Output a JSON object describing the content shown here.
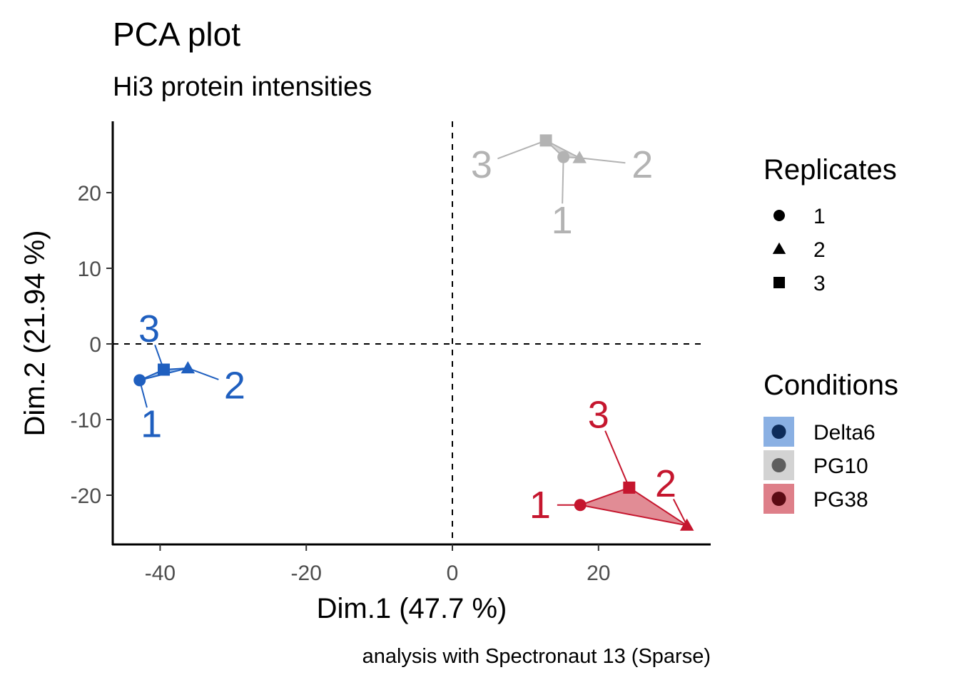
{
  "chart_data": {
    "type": "scatter",
    "title": "PCA plot",
    "subtitle": "Hi3 protein intensities",
    "xlabel": "Dim.1 (47.7 %)",
    "ylabel": "Dim.2 (21.94 %)",
    "caption": "analysis with Spectronaut 13 (Sparse)",
    "xlim": [
      -46.5,
      35.5
    ],
    "ylim": [
      -26.5,
      29.5
    ],
    "x_ticks": [
      -40,
      -20,
      0,
      20
    ],
    "x_tick_labels": [
      "-40",
      "-20",
      "0",
      "20"
    ],
    "y_ticks": [
      -20,
      -10,
      0,
      10,
      20
    ],
    "y_tick_labels": [
      "-20",
      "-10",
      "0",
      "10",
      "20"
    ],
    "reference_lines": {
      "x": 0,
      "y": 0
    },
    "grid": false,
    "series": [
      {
        "name": "Delta6",
        "color": "#1f5fbf",
        "fill": "#8ab0e3",
        "legend_dot": "#0d2c5a",
        "points": [
          {
            "replicate": "1",
            "shape": "circle",
            "x": -42.8,
            "y": -4.8,
            "label": "1",
            "label_x": -41.2,
            "label_y": -10.6
          },
          {
            "replicate": "2",
            "shape": "triangle",
            "x": -36.2,
            "y": -3.2,
            "label": "2",
            "label_x": -29.8,
            "label_y": -5.5
          },
          {
            "replicate": "3",
            "shape": "square",
            "x": -39.5,
            "y": -3.4,
            "label": "3",
            "label_x": -41.5,
            "label_y": 2.0
          }
        ]
      },
      {
        "name": "PG10",
        "color": "#b3b3b3",
        "fill": "#d3d3d3",
        "legend_dot": "#5e5e5e",
        "points": [
          {
            "replicate": "1",
            "shape": "circle",
            "x": 15.2,
            "y": 24.7,
            "label": "1",
            "label_x": 15.0,
            "label_y": 16.3
          },
          {
            "replicate": "2",
            "shape": "triangle",
            "x": 17.4,
            "y": 24.6,
            "label": "2",
            "label_x": 26.0,
            "label_y": 23.7
          },
          {
            "replicate": "3",
            "shape": "square",
            "x": 12.8,
            "y": 26.9,
            "label": "3",
            "label_x": 4.0,
            "label_y": 23.7
          }
        ]
      },
      {
        "name": "PG38",
        "color": "#c5162e",
        "fill": "#de7f89",
        "legend_dot": "#5b0a13",
        "points": [
          {
            "replicate": "1",
            "shape": "circle",
            "x": 17.5,
            "y": -21.3,
            "label": "1",
            "label_x": 12.0,
            "label_y": -21.3
          },
          {
            "replicate": "2",
            "shape": "triangle",
            "x": 32.1,
            "y": -24.0,
            "label": "2",
            "label_x": 29.2,
            "label_y": -18.5
          },
          {
            "replicate": "3",
            "shape": "square",
            "x": 24.2,
            "y": -19.0,
            "label": "3",
            "label_x": 20.0,
            "label_y": -9.4
          }
        ]
      }
    ],
    "legends": {
      "shape": {
        "title": "Replicates",
        "items": [
          {
            "label": "1",
            "shape": "circle"
          },
          {
            "label": "2",
            "shape": "triangle"
          },
          {
            "label": "3",
            "shape": "square"
          }
        ]
      },
      "color": {
        "title": "Conditions",
        "items": [
          "Delta6",
          "PG10",
          "PG38"
        ]
      },
      "placement": "right"
    }
  }
}
